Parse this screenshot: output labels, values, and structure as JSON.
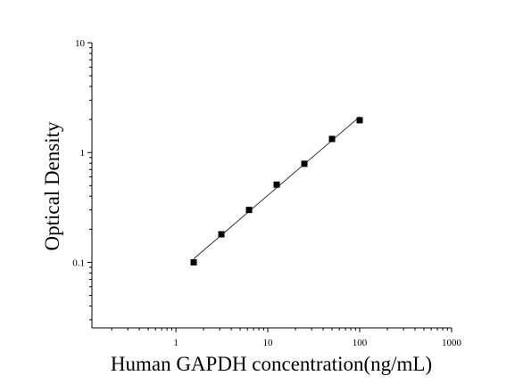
{
  "chart_data": {
    "type": "scatter",
    "x_label": "Human GAPDH concentration(ng/mL)",
    "y_label": "Optical Density",
    "log_x": true,
    "log_y": true,
    "minor_ticks": true,
    "fit_line": true,
    "color": "#000000",
    "x": [
      1.5625,
      3.125,
      6.25,
      12.5,
      25,
      50,
      100
    ],
    "values": [
      0.1,
      0.18,
      0.3,
      0.51,
      0.79,
      1.33,
      1.97
    ],
    "xlim": [
      0.122,
      1000
    ],
    "xticks": [
      1,
      10,
      100,
      1000
    ],
    "ylim": [
      0.0253,
      10
    ],
    "yticks": [
      0.1,
      1,
      10
    ]
  }
}
